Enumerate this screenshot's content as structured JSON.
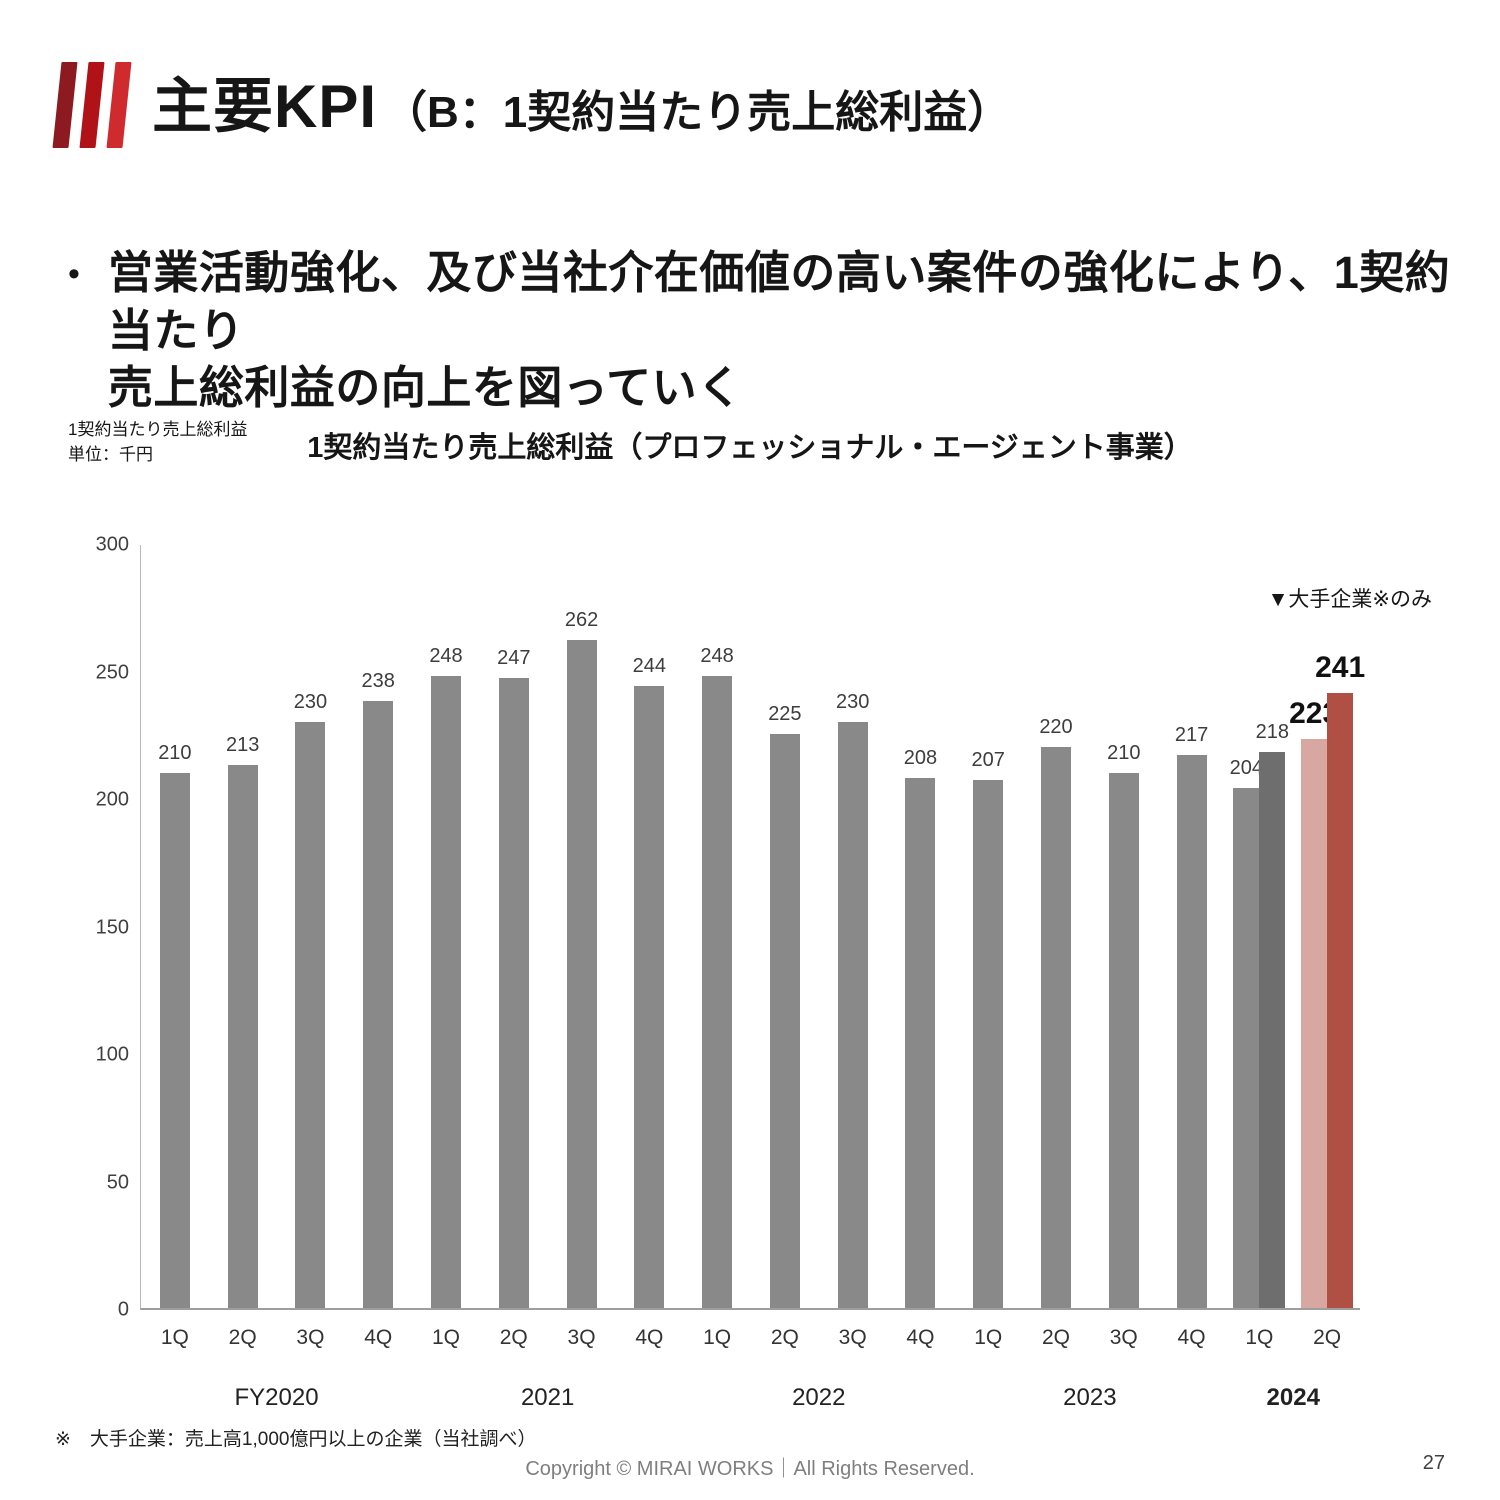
{
  "slide": {
    "title_main": "主要KPI",
    "title_sub": "（B：1契約当たり売上総利益）",
    "bullet_marker": "•",
    "bullet_line1": "営業活動強化、及び当社介在価値の高い案件の強化により、1契約当たり",
    "bullet_line2": "売上総利益の向上を図っていく",
    "footnote": "※　大手企業：売上高1,000億円以上の企業（当社調べ）",
    "footer_copyright": "Copyright © MIRAI WORKS｜All Rights Reserved.",
    "page_number": "27"
  },
  "chart_data": {
    "type": "bar",
    "title": "1契約当たり売上総利益（プロフェッショナル・エージェント事業）",
    "axis_note_line1": "1契約当たり売上総利益",
    "axis_note_line2": "単位：千円",
    "annotation": "▼大手企業※のみ",
    "ylabel": "千円",
    "ylim": [
      0,
      300
    ],
    "yticks": [
      0,
      50,
      100,
      150,
      200,
      250,
      300
    ],
    "grid": false,
    "legend_position": "none",
    "colors": {
      "bar_gray": "#898989",
      "bar_darkgray": "#6e6e6e",
      "bar_pink": "#d9a7a2",
      "bar_red": "#b04f44",
      "accent_red": "#b01218"
    },
    "groups": [
      {
        "label": "FY2020",
        "bold": false,
        "slots": [
          {
            "q": "1Q",
            "bars": [
              {
                "value": 210,
                "color": "bar_gray",
                "big": false
              }
            ]
          },
          {
            "q": "2Q",
            "bars": [
              {
                "value": 213,
                "color": "bar_gray",
                "big": false
              }
            ]
          },
          {
            "q": "3Q",
            "bars": [
              {
                "value": 230,
                "color": "bar_gray",
                "big": false
              }
            ]
          },
          {
            "q": "4Q",
            "bars": [
              {
                "value": 238,
                "color": "bar_gray",
                "big": false
              }
            ]
          }
        ]
      },
      {
        "label": "2021",
        "bold": false,
        "slots": [
          {
            "q": "1Q",
            "bars": [
              {
                "value": 248,
                "color": "bar_gray",
                "big": false
              }
            ]
          },
          {
            "q": "2Q",
            "bars": [
              {
                "value": 247,
                "color": "bar_gray",
                "big": false
              }
            ]
          },
          {
            "q": "3Q",
            "bars": [
              {
                "value": 262,
                "color": "bar_gray",
                "big": false
              }
            ]
          },
          {
            "q": "4Q",
            "bars": [
              {
                "value": 244,
                "color": "bar_gray",
                "big": false
              }
            ]
          }
        ]
      },
      {
        "label": "2022",
        "bold": false,
        "slots": [
          {
            "q": "1Q",
            "bars": [
              {
                "value": 248,
                "color": "bar_gray",
                "big": false
              }
            ]
          },
          {
            "q": "2Q",
            "bars": [
              {
                "value": 225,
                "color": "bar_gray",
                "big": false
              }
            ]
          },
          {
            "q": "3Q",
            "bars": [
              {
                "value": 230,
                "color": "bar_gray",
                "big": false
              }
            ]
          },
          {
            "q": "4Q",
            "bars": [
              {
                "value": 208,
                "color": "bar_gray",
                "big": false
              }
            ]
          }
        ]
      },
      {
        "label": "2023",
        "bold": false,
        "slots": [
          {
            "q": "1Q",
            "bars": [
              {
                "value": 207,
                "color": "bar_gray",
                "big": false
              }
            ]
          },
          {
            "q": "2Q",
            "bars": [
              {
                "value": 220,
                "color": "bar_gray",
                "big": false
              }
            ]
          },
          {
            "q": "3Q",
            "bars": [
              {
                "value": 210,
                "color": "bar_gray",
                "big": false
              }
            ]
          },
          {
            "q": "4Q",
            "bars": [
              {
                "value": 217,
                "color": "bar_gray",
                "big": false
              }
            ]
          }
        ]
      },
      {
        "label": "2024",
        "bold": true,
        "slots": [
          {
            "q": "1Q",
            "bars": [
              {
                "value": 204,
                "color": "bar_gray",
                "big": false
              },
              {
                "value": 218,
                "color": "bar_darkgray",
                "big": false
              }
            ]
          },
          {
            "q": "2Q",
            "bars": [
              {
                "value": 223,
                "color": "bar_pink",
                "big": true
              },
              {
                "value": 241,
                "color": "bar_red",
                "big": true
              }
            ]
          }
        ]
      }
    ]
  }
}
